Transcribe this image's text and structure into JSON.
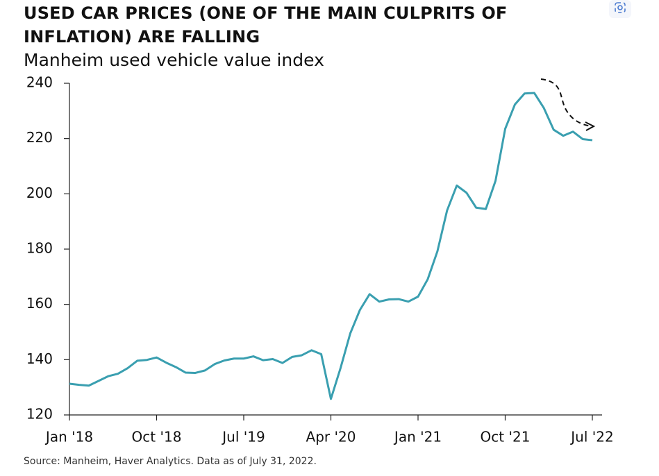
{
  "chart_data": {
    "type": "line",
    "title": "USED CAR PRICES (ONE OF THE MAIN CULPRITS OF INFLATION) ARE FALLING",
    "subtitle": "Manheim used vehicle value index",
    "source": "Source: Manheim, Haver Analytics. Data as of July 31, 2022.",
    "categories": [
      "Jan '18",
      null,
      null,
      null,
      null,
      null,
      null,
      null,
      null,
      "Oct '18",
      null,
      null,
      null,
      null,
      null,
      null,
      null,
      null,
      "Jul '19",
      null,
      null,
      null,
      null,
      null,
      null,
      null,
      null,
      "Apr '20",
      null,
      null,
      null,
      null,
      null,
      null,
      null,
      null,
      "Jan '21",
      null,
      null,
      null,
      null,
      null,
      null,
      null,
      null,
      "Oct '21",
      null,
      null,
      null,
      null,
      null,
      null,
      null,
      null,
      "Jul '22"
    ],
    "series": [
      {
        "name": "Manheim used vehicle value index",
        "color": "#3a9fb0",
        "values": [
          131.3,
          130.9,
          130.6,
          132.3,
          134.0,
          134.9,
          136.9,
          139.6,
          139.9,
          140.8,
          138.9,
          137.3,
          135.3,
          135.2,
          136.1,
          138.4,
          139.7,
          140.4,
          140.4,
          141.2,
          139.8,
          140.2,
          138.8,
          141.0,
          141.6,
          143.4,
          142.0,
          125.8,
          137.0,
          149.5,
          158.0,
          163.7,
          161.0,
          161.8,
          161.9,
          161.0,
          162.8,
          169.1,
          179.2,
          194.0,
          203.0,
          200.4,
          195.0,
          194.5,
          204.7,
          223.5,
          232.3,
          236.3,
          236.5,
          231.0,
          223.2,
          221.0,
          222.5,
          219.8,
          219.4
        ]
      }
    ],
    "ylim": [
      120,
      240
    ],
    "yticks": [
      120,
      140,
      160,
      180,
      200,
      220,
      240
    ],
    "grid": false
  }
}
